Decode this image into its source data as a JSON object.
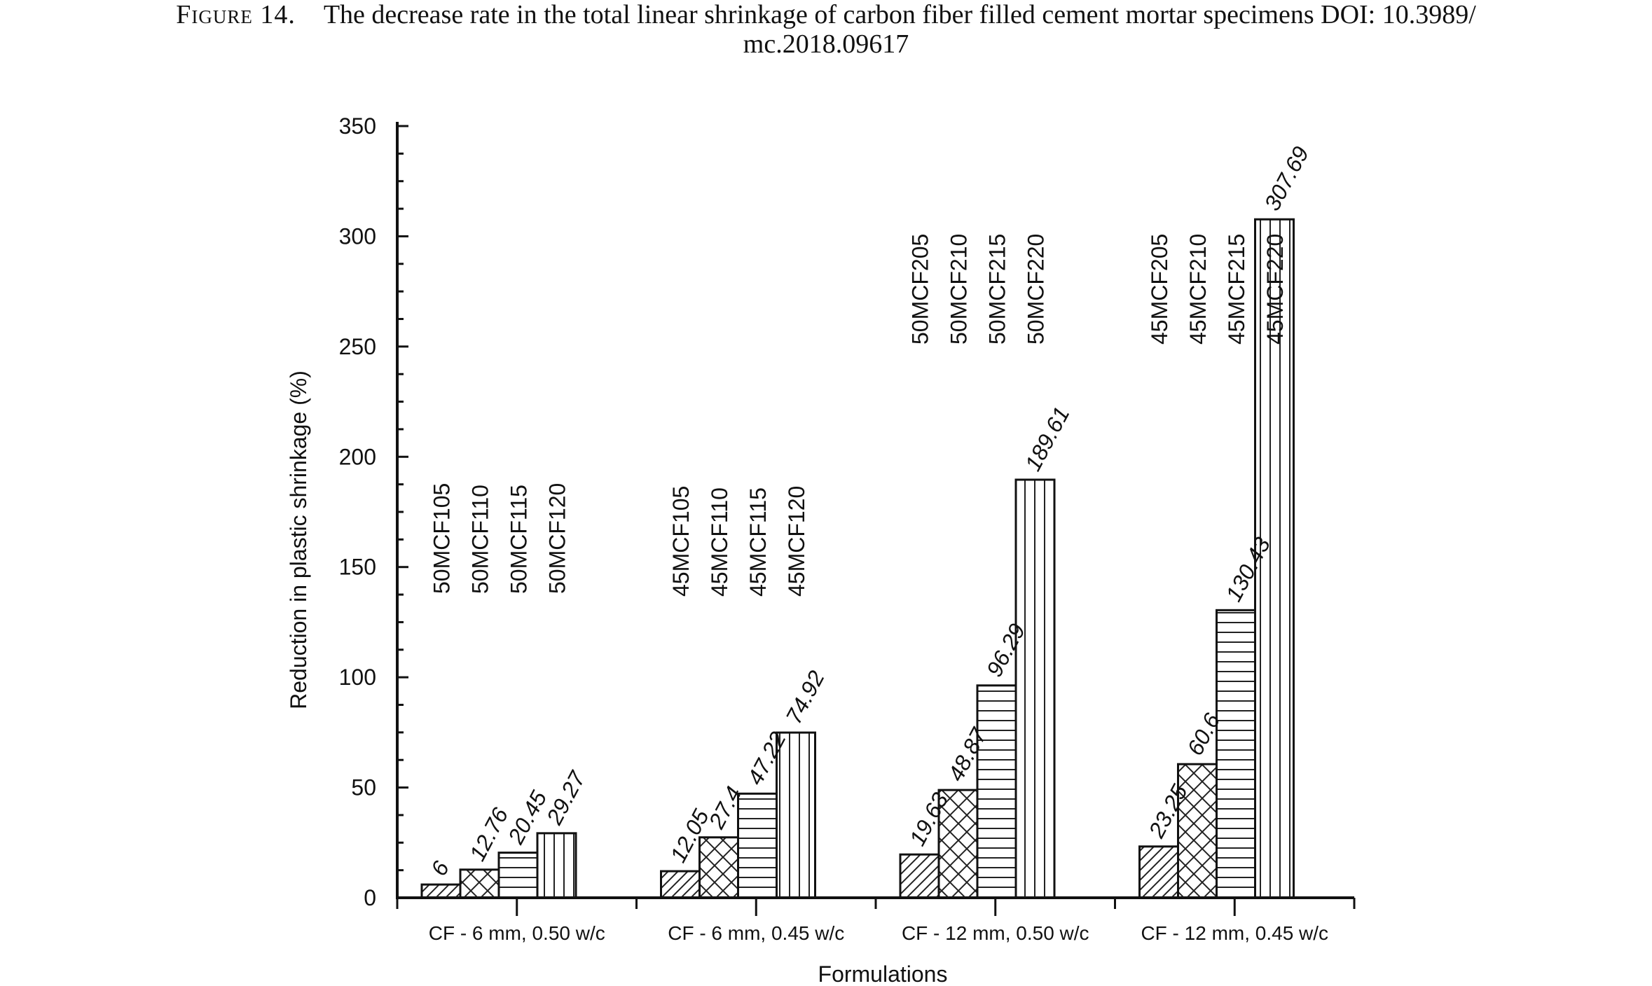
{
  "caption": {
    "figure_label": "Figure 14.",
    "line1": "The decrease rate in the total linear shrinkage of carbon fiber filled cement mortar specimens DOI: 10.3989/",
    "line2": "mc.2018.09617"
  },
  "chart_data": {
    "type": "bar",
    "xlabel": "Formulations",
    "ylabel": "Reduction in plastic shrinkage (%)",
    "ylim": [
      0,
      350
    ],
    "yticks": [
      0,
      50,
      100,
      150,
      200,
      250,
      300,
      350
    ],
    "grid": false,
    "groups": [
      {
        "label": "CF - 6 mm, 0.50 w/c",
        "bars": [
          {
            "name": "50MCF105",
            "value": 6,
            "value_label": "6"
          },
          {
            "name": "50MCF110",
            "value": 12.76,
            "value_label": "12.76"
          },
          {
            "name": "50MCF115",
            "value": 20.45,
            "value_label": "20.45"
          },
          {
            "name": "50MCF120",
            "value": 29.27,
            "value_label": "29.27"
          }
        ]
      },
      {
        "label": "CF - 6 mm, 0.45 w/c",
        "bars": [
          {
            "name": "45MCF105",
            "value": 12.05,
            "value_label": "12.05"
          },
          {
            "name": "45MCF110",
            "value": 27.4,
            "value_label": "27.4"
          },
          {
            "name": "45MCF115",
            "value": 47.22,
            "value_label": "47.22"
          },
          {
            "name": "45MCF120",
            "value": 74.92,
            "value_label": "74.92"
          }
        ]
      },
      {
        "label": "CF - 12 mm, 0.50 w/c",
        "bars": [
          {
            "name": "50MCF205",
            "value": 19.63,
            "value_label": "19.63"
          },
          {
            "name": "50MCF210",
            "value": 48.87,
            "value_label": "48.87"
          },
          {
            "name": "50MCF215",
            "value": 96.29,
            "value_label": "96.29"
          },
          {
            "name": "50MCF220",
            "value": 189.61,
            "value_label": "189.61"
          }
        ]
      },
      {
        "label": "CF - 12 mm, 0.45 w/c",
        "bars": [
          {
            "name": "45MCF205",
            "value": 23.25,
            "value_label": "23.25"
          },
          {
            "name": "45MCF210",
            "value": 60.6,
            "value_label": "60.6"
          },
          {
            "name": "45MCF215",
            "value": 130.43,
            "value_label": "130.43"
          },
          {
            "name": "45MCF220",
            "value": 307.69,
            "value_label": "307.69"
          }
        ]
      }
    ],
    "patterns": [
      "diagonal-hatch",
      "cross-hatch",
      "horizontal-lines",
      "vertical-lines"
    ]
  }
}
